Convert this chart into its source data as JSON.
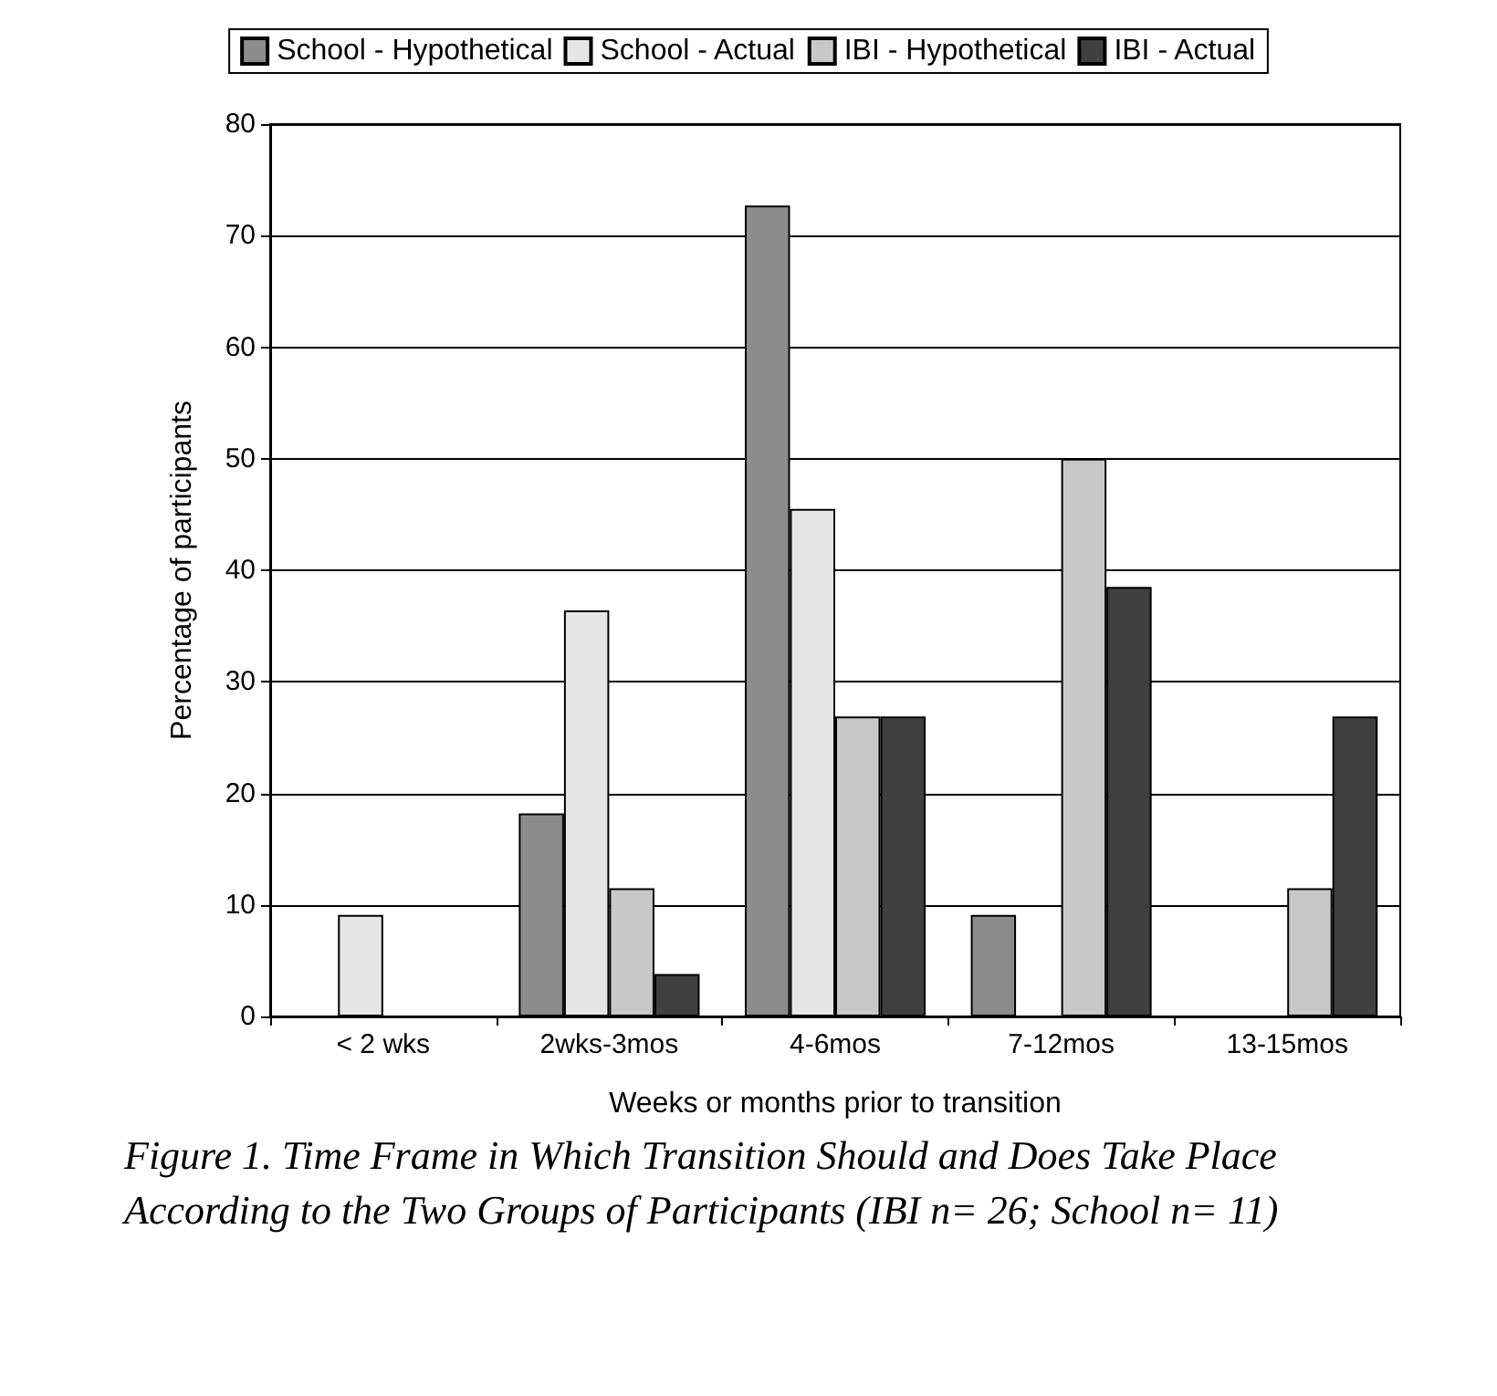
{
  "chart_data": {
    "type": "bar",
    "xlabel": "Weeks or months prior to transition",
    "ylabel": "Percentage of participants",
    "categories": [
      "< 2 wks",
      "2wks-3mos",
      "4-6mos",
      "7-12mos",
      "13-15mos"
    ],
    "series": [
      {
        "name": "School - Hypothetical",
        "color": "#8c8c8c",
        "values": [
          null,
          18.2,
          72.7,
          9.1,
          null
        ]
      },
      {
        "name": "School - Actual",
        "color": "#e6e6e6",
        "values": [
          9.1,
          36.4,
          45.5,
          null,
          null
        ]
      },
      {
        "name": "IBI - Hypothetical",
        "color": "#c8c8c8",
        "values": [
          null,
          11.5,
          26.9,
          50,
          11.5
        ]
      },
      {
        "name": "IBI - Actual",
        "color": "#404040",
        "values": [
          null,
          3.8,
          26.9,
          38.5,
          26.9
        ]
      }
    ],
    "ylim": [
      0,
      80
    ],
    "yticks": [
      0,
      10,
      20,
      30,
      40,
      50,
      60,
      70,
      80
    ],
    "grid": "y",
    "legend": "top",
    "annotations": [
      "Figure 1. Time Frame in Which Transition Should and Does Take Place According to the Two Groups of Participants (IBI n= 26; School n= 11)"
    ]
  }
}
